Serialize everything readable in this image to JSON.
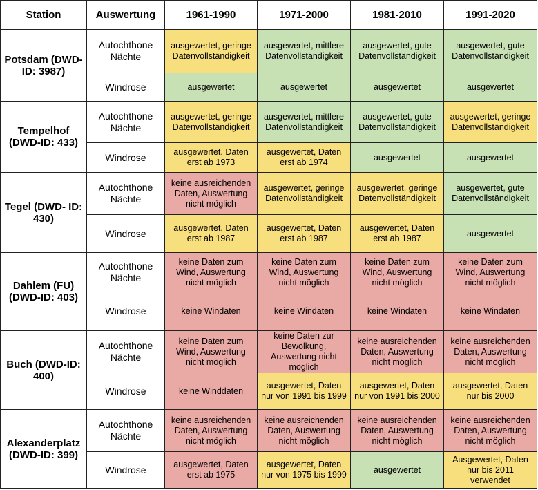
{
  "table": {
    "header": [
      "Station",
      "Auswertung",
      "1961-1990",
      "1971-2000",
      "1981-2010",
      "1991-2020"
    ],
    "stations": [
      {
        "station": "Potsdam (DWD-ID: 3987)",
        "rows": [
          {
            "evaluation": "Autochthone Nächte",
            "cells": [
              {
                "text": "ausgewertet, geringe Datenvollständigkeit",
                "color": "#f8df7e"
              },
              {
                "text": "ausgewertet, mittlere Datenvollständigkeit",
                "color": "#c7e0b4"
              },
              {
                "text": "ausgewertet, gute Datenvollständigkeit",
                "color": "#c7e0b4"
              },
              {
                "text": "ausgewertet, gute Datenvollständigkeit",
                "color": "#c7e0b4"
              }
            ]
          },
          {
            "evaluation": "Windrose",
            "cells": [
              {
                "text": "ausgewertet",
                "color": "#c7e0b4"
              },
              {
                "text": "ausgewertet",
                "color": "#c7e0b4"
              },
              {
                "text": "ausgewertet",
                "color": "#c7e0b4"
              },
              {
                "text": "ausgewertet",
                "color": "#c7e0b4"
              }
            ]
          }
        ]
      },
      {
        "station": "Tempelhof (DWD-ID: 433)",
        "rows": [
          {
            "evaluation": "Autochthone Nächte",
            "cells": [
              {
                "text": "ausgewertet, geringe Datenvollständigkeit",
                "color": "#f8df7e"
              },
              {
                "text": "ausgewertet, mittlere Datenvollständigkeit",
                "color": "#c7e0b4"
              },
              {
                "text": "ausgewertet, gute Datenvollständigkeit",
                "color": "#c7e0b4"
              },
              {
                "text": "ausgewertet, geringe Datenvollständigkeit",
                "color": "#f8df7e"
              }
            ]
          },
          {
            "evaluation": "Windrose",
            "cells": [
              {
                "text": "ausgewertet, Daten erst ab 1973",
                "color": "#f8df7e"
              },
              {
                "text": "ausgewertet, Daten erst ab 1974",
                "color": "#f8df7e"
              },
              {
                "text": "ausgewertet",
                "color": "#c7e0b4"
              },
              {
                "text": "ausgewertet",
                "color": "#c7e0b4"
              }
            ]
          }
        ]
      },
      {
        "station": "Tegel (DWD- ID: 430)",
        "rows": [
          {
            "evaluation": "Autochthone Nächte",
            "cells": [
              {
                "text": "keine ausreichenden Daten, Auswertung nicht möglich",
                "color": "#e9aaa5"
              },
              {
                "text": "ausgewertet, geringe Datenvollständigkeit",
                "color": "#f8df7e"
              },
              {
                "text": "ausgewertet, geringe Datenvollständigkeit",
                "color": "#f8df7e"
              },
              {
                "text": "ausgewertet, gute Datenvollständigkeit",
                "color": "#c7e0b4"
              }
            ]
          },
          {
            "evaluation": "Windrose",
            "cells": [
              {
                "text": "ausgewertet, Daten erst ab 1987",
                "color": "#f8df7e"
              },
              {
                "text": "ausgewertet, Daten erst ab 1987",
                "color": "#f8df7e"
              },
              {
                "text": "ausgewertet, Daten erst ab 1987",
                "color": "#f8df7e"
              },
              {
                "text": "ausgewertet",
                "color": "#c7e0b4"
              }
            ]
          }
        ]
      },
      {
        "station": "Dahlem (FU) (DWD-ID: 403)",
        "rows": [
          {
            "evaluation": "Autochthone Nächte",
            "cells": [
              {
                "text": "keine Daten zum Wind, Auswertung nicht möglich",
                "color": "#e9aaa5"
              },
              {
                "text": "keine Daten zum Wind, Auswertung nicht möglich",
                "color": "#e9aaa5"
              },
              {
                "text": "keine Daten zum Wind, Auswertung nicht möglich",
                "color": "#e9aaa5"
              },
              {
                "text": "keine Daten zum Wind, Auswertung nicht möglich",
                "color": "#e9aaa5"
              }
            ]
          },
          {
            "evaluation": "Windrose",
            "cells": [
              {
                "text": "keine Windaten",
                "color": "#e9aaa5"
              },
              {
                "text": "keine Windaten",
                "color": "#e9aaa5"
              },
              {
                "text": "keine Windaten",
                "color": "#e9aaa5"
              },
              {
                "text": "keine Windaten",
                "color": "#e9aaa5"
              }
            ]
          }
        ]
      },
      {
        "station": "Buch (DWD-ID: 400)",
        "rows": [
          {
            "evaluation": "Autochthone Nächte",
            "cells": [
              {
                "text": "keine Daten zum Wind, Auswertung nicht möglich",
                "color": "#e9aaa5"
              },
              {
                "text": "keine Daten zur Bewölkung, Auswertung nicht möglich",
                "color": "#e9aaa5"
              },
              {
                "text": "keine ausreichenden Daten, Auswertung nicht möglich",
                "color": "#e9aaa5"
              },
              {
                "text": "keine ausreichenden Daten, Auswertung nicht möglich",
                "color": "#e9aaa5"
              }
            ]
          },
          {
            "evaluation": "Windrose",
            "cells": [
              {
                "text": "keine Winddaten",
                "color": "#e9aaa5"
              },
              {
                "text": "ausgewertet, Daten nur von 1991 bis 1999",
                "color": "#f8df7e"
              },
              {
                "text": "ausgewertet, Daten nur von 1991 bis 2000",
                "color": "#f8df7e"
              },
              {
                "text": "ausgewertet, Daten nur bis 2000",
                "color": "#f8df7e"
              }
            ]
          }
        ]
      },
      {
        "station": "Alexanderplatz (DWD-ID: 399)",
        "rows": [
          {
            "evaluation": "Autochthone Nächte",
            "cells": [
              {
                "text": "keine ausreichenden Daten, Auswertung nicht möglich",
                "color": "#e9aaa5"
              },
              {
                "text": "keine ausreichenden Daten, Auswertung nicht möglich",
                "color": "#e9aaa5"
              },
              {
                "text": "keine ausreichenden Daten, Auswertung nicht möglich",
                "color": "#e9aaa5"
              },
              {
                "text": "keine ausreichenden Daten, Auswertung nicht möglich",
                "color": "#e9aaa5"
              }
            ]
          },
          {
            "evaluation": "Windrose",
            "cells": [
              {
                "text": "ausgewertet, Daten erst ab 1975",
                "color": "#e9aaa5"
              },
              {
                "text": "ausgewertet, Daten nur von 1975 bis 1999",
                "color": "#f8df7e"
              },
              {
                "text": "ausgewertet",
                "color": "#c7e0b4"
              },
              {
                "text": "Ausgewertet, Daten nur bis 2011 verwendet",
                "color": "#f8df7e"
              }
            ]
          }
        ]
      }
    ]
  }
}
